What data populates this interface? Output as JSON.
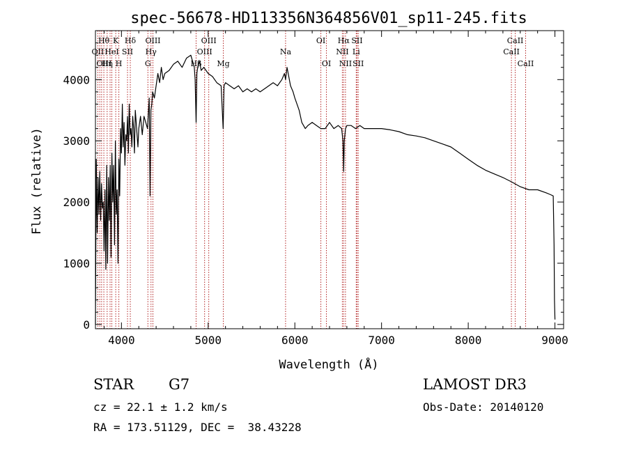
{
  "chart_data": {
    "type": "line",
    "title": "spec-56678-HD113356N364856V01_sp11-245.fits",
    "xlabel": "Wavelength (Å)",
    "ylabel": "Flux (relative)",
    "xlim": [
      3700,
      9100
    ],
    "ylim": [
      -70,
      4800
    ],
    "xticks": [
      4000,
      5000,
      6000,
      7000,
      8000,
      9000
    ],
    "yticks": [
      0,
      1000,
      2000,
      3000,
      4000
    ],
    "series": [
      {
        "name": "spectrum",
        "x": [
          3700,
          3710,
          3720,
          3730,
          3740,
          3750,
          3760,
          3770,
          3780,
          3790,
          3800,
          3810,
          3820,
          3830,
          3840,
          3850,
          3860,
          3870,
          3880,
          3890,
          3900,
          3910,
          3920,
          3930,
          3940,
          3950,
          3960,
          3970,
          3980,
          3990,
          4000,
          4010,
          4020,
          4030,
          4040,
          4050,
          4060,
          4070,
          4080,
          4090,
          4100,
          4110,
          4120,
          4130,
          4140,
          4150,
          4160,
          4170,
          4180,
          4190,
          4200,
          4220,
          4240,
          4260,
          4280,
          4300,
          4320,
          4330,
          4340,
          4350,
          4360,
          4380,
          4400,
          4420,
          4440,
          4460,
          4480,
          4500,
          4550,
          4600,
          4650,
          4700,
          4750,
          4800,
          4820,
          4840,
          4850,
          4861,
          4870,
          4880,
          4900,
          4920,
          4950,
          5000,
          5050,
          5100,
          5150,
          5173,
          5183,
          5200,
          5250,
          5300,
          5350,
          5400,
          5450,
          5500,
          5550,
          5600,
          5650,
          5700,
          5750,
          5800,
          5850,
          5880,
          5893,
          5910,
          5930,
          5950,
          5980,
          6000,
          6050,
          6080,
          6100,
          6120,
          6150,
          6200,
          6250,
          6300,
          6350,
          6400,
          6450,
          6500,
          6540,
          6555,
          6563,
          6570,
          6585,
          6600,
          6650,
          6700,
          6750,
          6800,
          6850,
          6900,
          6950,
          7000,
          7100,
          7200,
          7300,
          7400,
          7500,
          7600,
          7700,
          7800,
          7900,
          8000,
          8100,
          8200,
          8300,
          8400,
          8500,
          8600,
          8700,
          8800,
          8900,
          8950,
          8980,
          8990,
          8995,
          9000
        ],
        "y": [
          0,
          2700,
          1500,
          2400,
          1800,
          2500,
          1700,
          2300,
          1900,
          2000,
          1200,
          2200,
          900,
          2600,
          1000,
          2400,
          1700,
          2600,
          1100,
          2800,
          2000,
          2600,
          1300,
          3000,
          1800,
          2200,
          1000,
          2700,
          2100,
          3200,
          2800,
          3600,
          2900,
          3300,
          2600,
          3100,
          3000,
          3400,
          2800,
          3600,
          3100,
          3200,
          2900,
          3400,
          3200,
          2800,
          3500,
          3300,
          3100,
          2900,
          3200,
          3400,
          3100,
          3400,
          3300,
          3200,
          3700,
          2100,
          3500,
          3600,
          3800,
          3700,
          3900,
          4100,
          3950,
          4200,
          4000,
          4100,
          4150,
          4250,
          4300,
          4200,
          4350,
          4400,
          4300,
          4200,
          4000,
          3300,
          4100,
          4200,
          4300,
          4150,
          4200,
          4100,
          4050,
          3950,
          3900,
          3200,
          3900,
          3950,
          3900,
          3850,
          3900,
          3800,
          3850,
          3800,
          3850,
          3800,
          3850,
          3900,
          3950,
          3900,
          4000,
          4100,
          4000,
          4200,
          4050,
          3900,
          3800,
          3700,
          3500,
          3300,
          3250,
          3200,
          3250,
          3300,
          3250,
          3200,
          3200,
          3300,
          3200,
          3250,
          3200,
          3000,
          2500,
          3000,
          3200,
          3250,
          3250,
          3200,
          3250,
          3200,
          3200,
          3200,
          3200,
          3200,
          3180,
          3150,
          3100,
          3080,
          3050,
          3000,
          2950,
          2900,
          2800,
          2700,
          2600,
          2520,
          2460,
          2400,
          2330,
          2250,
          2200,
          2200,
          2150,
          2120,
          2100,
          1300,
          400,
          80
        ]
      }
    ],
    "line_labels": [
      {
        "label": "Hθ",
        "x": 3797,
        "row": 1
      },
      {
        "label": "K",
        "x": 3934,
        "row": 1
      },
      {
        "label": "Hδ",
        "x": 4102,
        "row": 1
      },
      {
        "label": "OII",
        "x": 3727,
        "row": 2
      },
      {
        "label": "HeI",
        "x": 3889,
        "row": 2
      },
      {
        "label": "SII",
        "x": 4070,
        "row": 2
      },
      {
        "label": "OIII",
        "x": 3800,
        "row": 3
      },
      {
        "label": "Hη",
        "x": 3835,
        "row": 3
      },
      {
        "label": "H",
        "x": 3970,
        "row": 3
      },
      {
        "label": "OIII",
        "x": 4363,
        "row": 1
      },
      {
        "label": "Hγ",
        "x": 4341,
        "row": 2
      },
      {
        "label": "G",
        "x": 4305,
        "row": 3
      },
      {
        "label": "OIII",
        "x": 5007,
        "row": 1
      },
      {
        "label": "OIII",
        "x": 4959,
        "row": 2
      },
      {
        "label": "Hβ",
        "x": 4861,
        "row": 3
      },
      {
        "label": "Mg",
        "x": 5175,
        "row": 3
      },
      {
        "label": "Na",
        "x": 5893,
        "row": 2
      },
      {
        "label": "OI",
        "x": 6300,
        "row": 1
      },
      {
        "label": "OI",
        "x": 6364,
        "row": 3
      },
      {
        "label": "Hα",
        "x": 6563,
        "row": 1
      },
      {
        "label": "SII",
        "x": 6717,
        "row": 1
      },
      {
        "label": "NII",
        "x": 6548,
        "row": 2
      },
      {
        "label": "Li",
        "x": 6708,
        "row": 2
      },
      {
        "label": "NII",
        "x": 6584,
        "row": 3
      },
      {
        "label": "SII",
        "x": 6731,
        "row": 3
      },
      {
        "label": "CaII",
        "x": 8542,
        "row": 1
      },
      {
        "label": "CaII",
        "x": 8498,
        "row": 2
      },
      {
        "label": "CaII",
        "x": 8662,
        "row": 3
      }
    ],
    "marker_lines": [
      3727,
      3750,
      3771,
      3797,
      3835,
      3869,
      3889,
      3934,
      3970,
      4070,
      4102,
      4305,
      4341,
      4363,
      4861,
      4959,
      5007,
      5175,
      5893,
      6300,
      6364,
      6548,
      6563,
      6584,
      6708,
      6717,
      6731,
      8498,
      8542,
      8662
    ]
  },
  "info": {
    "object_class": "STAR",
    "subclass": "G7",
    "redshift": "cz = 22.1 ± 1.2 km/s",
    "coords": "RA = 173.51129, DEC =  38.43228",
    "survey": "LAMOST DR3",
    "obs_date": "Obs-Date: 20140120"
  },
  "colors": {
    "marker": "#b22222",
    "line": "#000000"
  }
}
